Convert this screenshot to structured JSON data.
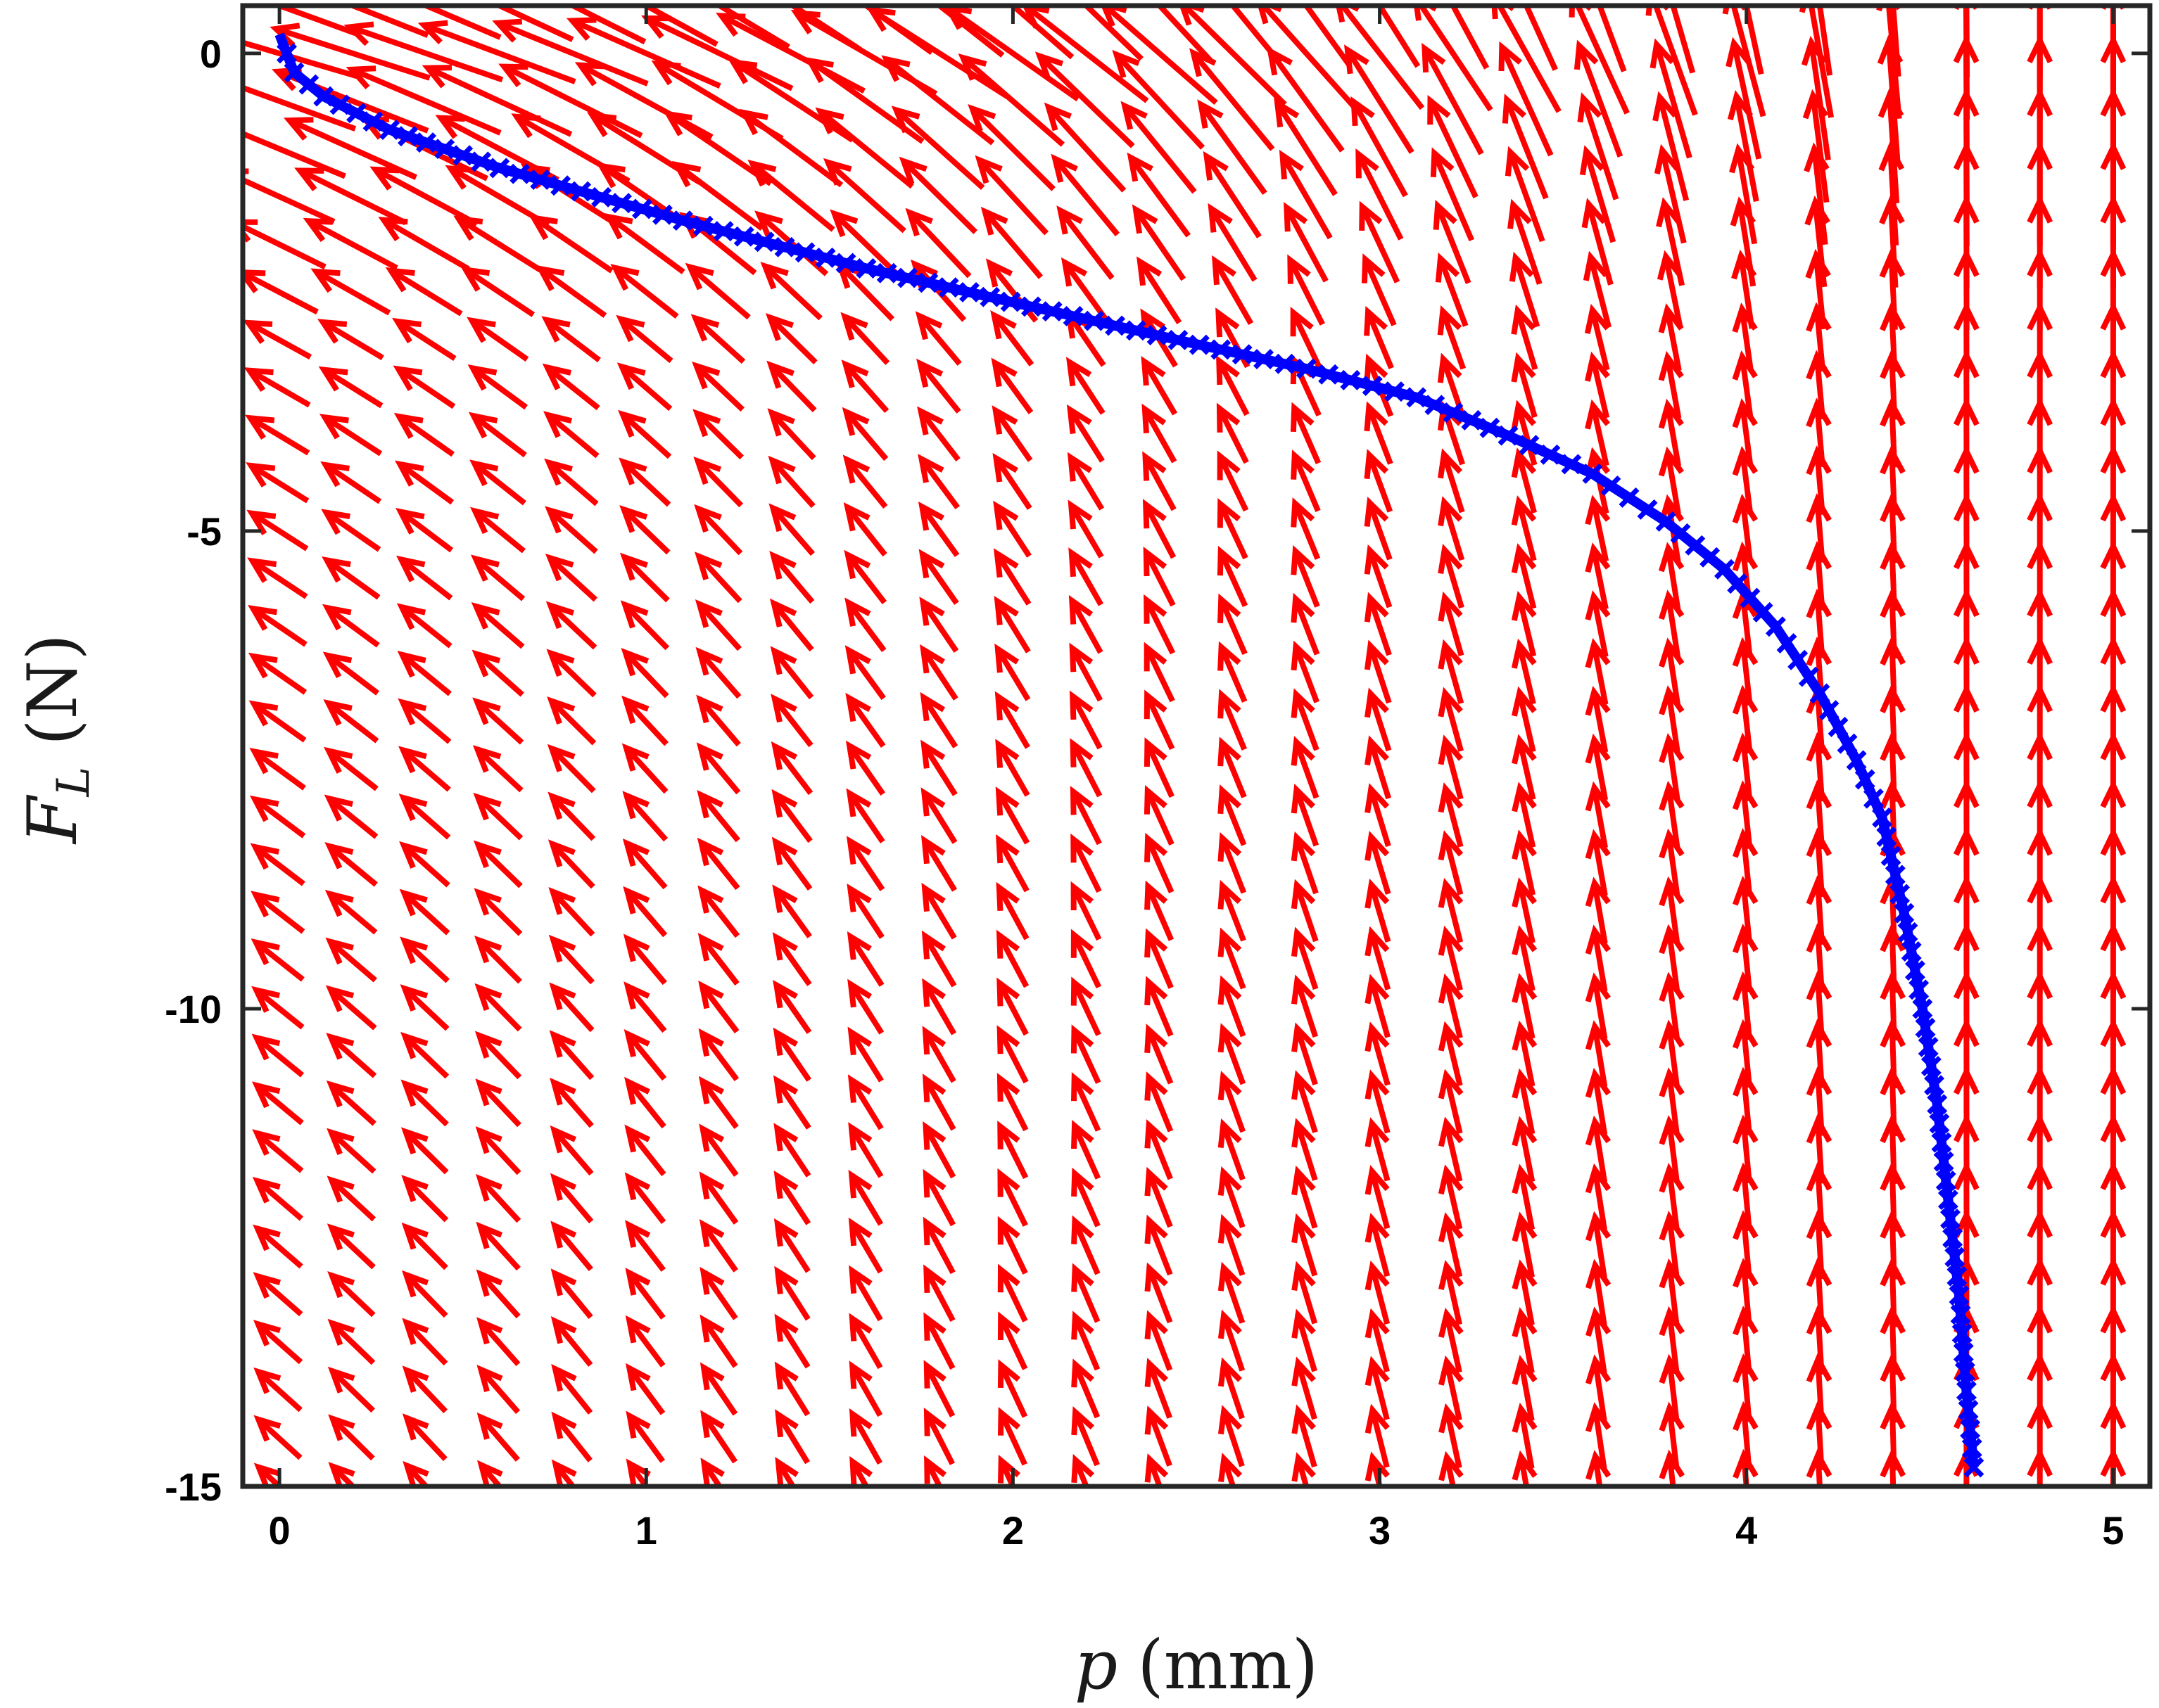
{
  "chart_data": {
    "type": "quiver",
    "title": "",
    "xlabel": {
      "var": "p",
      "unit": "(mm)"
    },
    "ylabel": {
      "var": "F",
      "sub": "L",
      "unit": "(N)"
    },
    "xlim": [
      -0.1,
      5.1
    ],
    "ylim": [
      -15,
      0.5
    ],
    "xticks": [
      0,
      1,
      2,
      3,
      4,
      5
    ],
    "xtick_labels": [
      "0",
      "1",
      "2",
      "3",
      "4",
      "5"
    ],
    "yticks": [
      0,
      -5,
      -10,
      -15
    ],
    "ytick_labels": [
      "0",
      "-5",
      "-10",
      "-15"
    ],
    "grid": false,
    "vector_field": {
      "name": "direction field",
      "color": "#ff0000",
      "x_range": [
        0,
        5
      ],
      "x_count": 26,
      "y_range": [
        -15,
        0.5
      ],
      "y_count": 32,
      "description": "arrows point up-left toward the origin; nearly horizontal and long near F_L = 0, nearly vertical near p = 4.6-5 mm"
    },
    "trajectory": {
      "name": "solution curve",
      "color": "#0000ff",
      "marker": "x",
      "p": [
        4.62,
        4.6,
        4.58,
        4.55,
        4.52,
        4.48,
        4.43,
        4.37,
        4.3,
        4.2,
        4.08,
        3.94,
        3.78,
        3.58,
        3.35,
        3.1,
        2.8,
        2.45,
        2.05,
        1.6,
        1.1,
        0.6,
        0.3,
        0.12,
        0.04,
        0.0
      ],
      "FL": [
        -14.8,
        -14.0,
        -13.0,
        -12.0,
        -11.0,
        -10.0,
        -9.0,
        -8.0,
        -7.4,
        -6.7,
        -6.0,
        -5.4,
        -4.9,
        -4.4,
        -4.0,
        -3.6,
        -3.3,
        -3.0,
        -2.65,
        -2.25,
        -1.75,
        -1.2,
        -0.8,
        -0.45,
        -0.2,
        0.2
      ]
    }
  }
}
